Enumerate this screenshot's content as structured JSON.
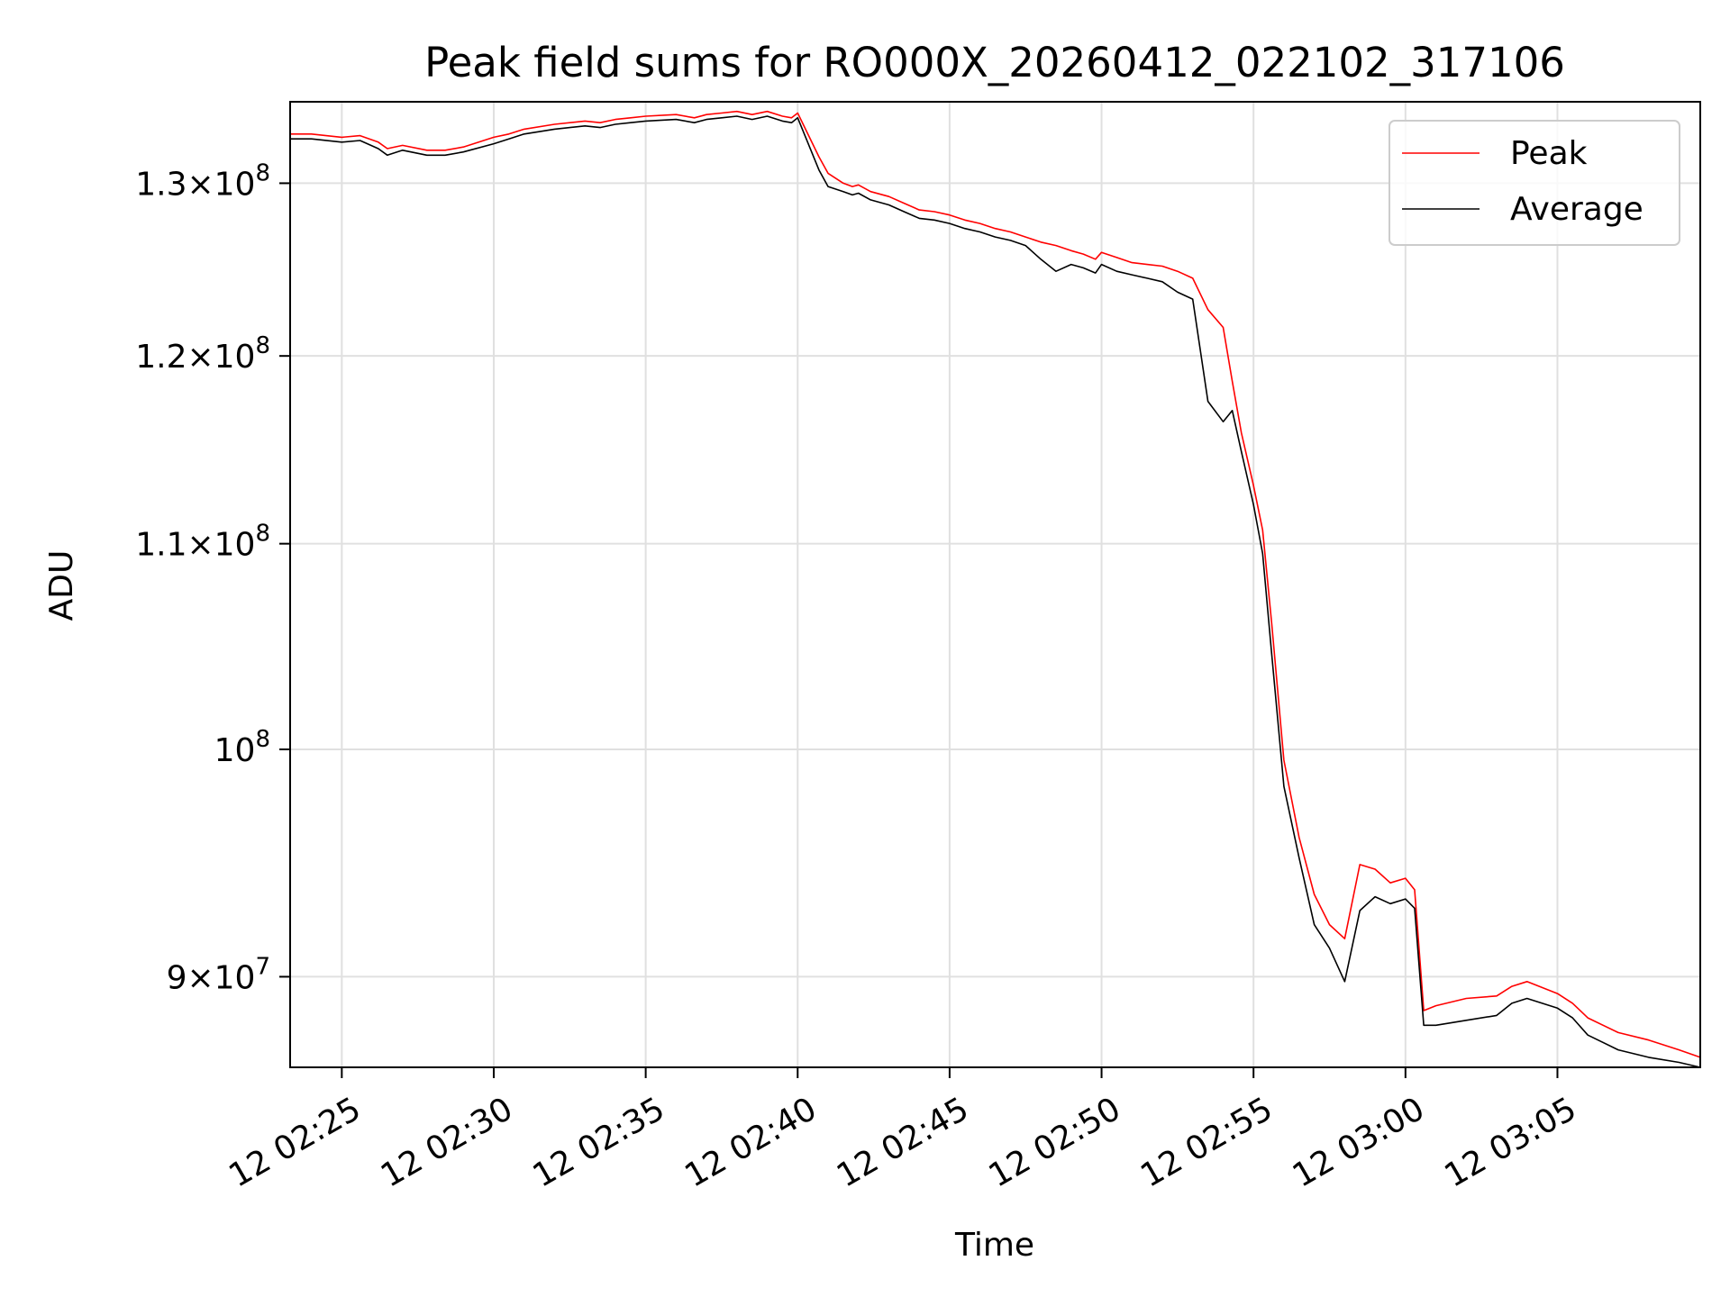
{
  "chart_data": {
    "type": "line",
    "title": "Peak field sums for RO000X_20260412_022102_317106",
    "xlabel": "Time",
    "ylabel": "ADU",
    "yscale": "log",
    "xlim": [
      -1.7,
      44.7
    ],
    "ylim": [
      86300000,
      135000000
    ],
    "x_ticks": [
      {
        "value": 0,
        "label": "12 02:25"
      },
      {
        "value": 5,
        "label": "12 02:30"
      },
      {
        "value": 10,
        "label": "12 02:35"
      },
      {
        "value": 15,
        "label": "12 02:40"
      },
      {
        "value": 20,
        "label": "12 02:45"
      },
      {
        "value": 25,
        "label": "12 02:50"
      },
      {
        "value": 30,
        "label": "12 02:55"
      },
      {
        "value": 35,
        "label": "12 03:00"
      },
      {
        "value": 40,
        "label": "12 03:05"
      }
    ],
    "y_ticks": [
      {
        "value": 90000000,
        "mantissa": "9",
        "exponent": "7"
      },
      {
        "value": 100000000,
        "mantissa": "",
        "exponent": "8"
      },
      {
        "value": 110000000,
        "mantissa": "1.1",
        "exponent": "8"
      },
      {
        "value": 120000000,
        "mantissa": "1.2",
        "exponent": "8"
      },
      {
        "value": 130000000,
        "mantissa": "1.3",
        "exponent": "8"
      }
    ],
    "times_symbol": "×",
    "grid": true,
    "legend_position": "top-right",
    "series": [
      {
        "name": "Peak",
        "color": "#ff0000",
        "x": [
          -1.7,
          -1.0,
          0.0,
          0.6,
          1.2,
          1.5,
          2.0,
          2.8,
          3.4,
          4.0,
          5.0,
          5.5,
          6.0,
          7.0,
          8.0,
          8.5,
          9.0,
          9.5,
          10.0,
          11.0,
          11.6,
          12.0,
          12.5,
          13.0,
          13.5,
          14.0,
          14.5,
          14.8,
          15.0,
          15.7,
          16.0,
          16.5,
          16.8,
          17.0,
          17.4,
          18.0,
          18.5,
          19.0,
          19.5,
          20.0,
          20.5,
          21.0,
          21.5,
          22.0,
          22.5,
          23.0,
          23.5,
          24.0,
          24.4,
          24.8,
          25.0,
          25.5,
          26.0,
          26.5,
          27.0,
          27.5,
          28.0,
          28.5,
          29.0,
          29.3,
          29.6,
          30.0,
          30.3,
          30.6,
          31.0,
          31.5,
          32.0,
          32.5,
          33.0,
          33.5,
          34.0,
          34.5,
          35.0,
          35.3,
          35.6,
          36.0,
          37.0,
          38.0,
          38.5,
          39.0,
          40.0,
          40.5,
          41.0,
          42.0,
          43.0,
          44.0,
          44.7
        ],
        "y": [
          133000000,
          133000000,
          132800000,
          132900000,
          132500000,
          132100000,
          132300000,
          132000000,
          132000000,
          132200000,
          132800000,
          133000000,
          133300000,
          133600000,
          133800000,
          133700000,
          133900000,
          134000000,
          134100000,
          134200000,
          134000000,
          134200000,
          134300000,
          134400000,
          134200000,
          134400000,
          134100000,
          134000000,
          134300000,
          131600000,
          130600000,
          130000000,
          129800000,
          129900000,
          129500000,
          129200000,
          128800000,
          128400000,
          128300000,
          128100000,
          127800000,
          127600000,
          127300000,
          127100000,
          126800000,
          126500000,
          126300000,
          126000000,
          125800000,
          125500000,
          125900000,
          125600000,
          125300000,
          125200000,
          125100000,
          124800000,
          124400000,
          122600000,
          121600000,
          118600000,
          115800000,
          113000000,
          110700000,
          106000000,
          99500000,
          96000000,
          93500000,
          92200000,
          91600000,
          94800000,
          94600000,
          94000000,
          94200000,
          93700000,
          88600000,
          88800000,
          89100000,
          89200000,
          89600000,
          89800000,
          89300000,
          88900000,
          88300000,
          87700000,
          87400000,
          87000000,
          86700000
        ]
      },
      {
        "name": "Average",
        "color": "#000000",
        "x": [
          -1.7,
          -1.0,
          0.0,
          0.6,
          1.2,
          1.5,
          2.0,
          2.8,
          3.4,
          4.0,
          5.0,
          5.5,
          6.0,
          7.0,
          8.0,
          8.5,
          9.0,
          9.5,
          10.0,
          11.0,
          11.6,
          12.0,
          12.5,
          13.0,
          13.5,
          14.0,
          14.5,
          14.8,
          15.0,
          15.7,
          16.0,
          16.5,
          16.8,
          17.0,
          17.4,
          18.0,
          18.5,
          19.0,
          19.5,
          20.0,
          20.5,
          21.0,
          21.5,
          22.0,
          22.5,
          23.0,
          23.5,
          24.0,
          24.4,
          24.8,
          25.0,
          25.5,
          26.0,
          26.5,
          27.0,
          27.5,
          28.0,
          28.5,
          29.0,
          29.3,
          29.6,
          30.0,
          30.3,
          30.6,
          31.0,
          31.5,
          32.0,
          32.5,
          33.0,
          33.5,
          34.0,
          34.5,
          35.0,
          35.3,
          35.6,
          36.0,
          37.0,
          38.0,
          38.5,
          39.0,
          40.0,
          40.5,
          41.0,
          42.0,
          43.0,
          44.0,
          44.7
        ],
        "y": [
          132700000,
          132700000,
          132500000,
          132600000,
          132100000,
          131700000,
          132000000,
          131700000,
          131700000,
          131900000,
          132400000,
          132700000,
          133000000,
          133300000,
          133500000,
          133400000,
          133600000,
          133700000,
          133800000,
          133900000,
          133700000,
          133900000,
          134000000,
          134100000,
          133900000,
          134100000,
          133800000,
          133700000,
          134000000,
          130800000,
          129800000,
          129500000,
          129300000,
          129400000,
          129000000,
          128700000,
          128300000,
          127900000,
          127800000,
          127600000,
          127300000,
          127100000,
          126800000,
          126600000,
          126300000,
          125500000,
          124800000,
          125200000,
          125000000,
          124700000,
          125200000,
          124800000,
          124600000,
          124400000,
          124200000,
          123600000,
          123200000,
          117500000,
          116400000,
          117000000,
          114800000,
          112000000,
          109500000,
          104500000,
          98300000,
          95100000,
          92200000,
          91200000,
          89800000,
          92800000,
          93400000,
          93100000,
          93300000,
          92900000,
          88000000,
          88000000,
          88200000,
          88400000,
          88900000,
          89100000,
          88700000,
          88300000,
          87600000,
          87000000,
          86700000,
          86500000,
          86300000
        ]
      }
    ]
  }
}
